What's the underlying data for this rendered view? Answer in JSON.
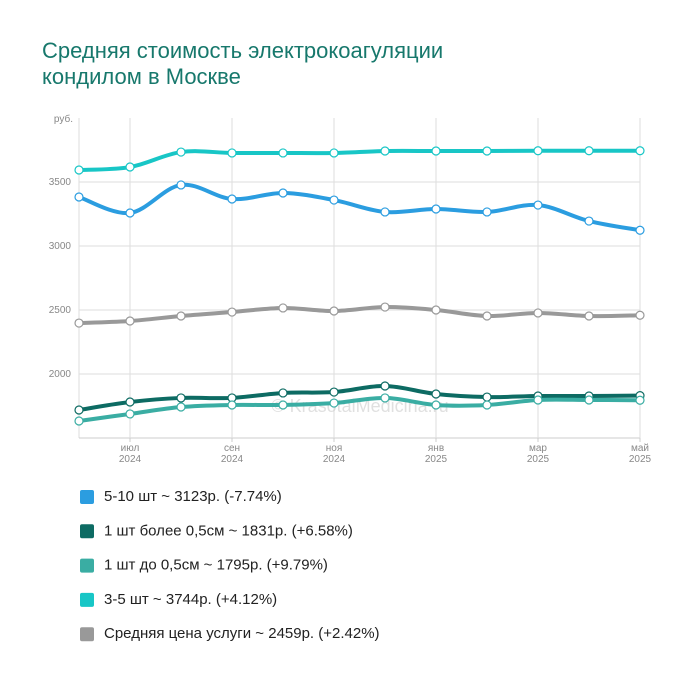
{
  "chart_data": {
    "type": "line",
    "title": "Средняя стоимость электрокоагуляции кондилом в Москве",
    "y_label": "руб.",
    "watermark": "© KrasotaiMedicina.ru",
    "categories": [
      null,
      "июл 2024",
      null,
      "сен 2024",
      null,
      "ноя 2024",
      null,
      "янв 2025",
      null,
      "мар 2025",
      null,
      "май 2025"
    ],
    "ylim": [
      1500,
      4000
    ],
    "yticks": [
      2000,
      2500,
      3000,
      3500
    ],
    "grid": true,
    "legend": "bottom",
    "series": [
      {
        "name": "5-10 шт ~ 3123р. (-7.74%)",
        "color": "#2b9de0",
        "values": [
          3383,
          3258,
          3477,
          3367,
          3414,
          3359,
          3266,
          3289,
          3266,
          3320,
          3195,
          3123
        ]
      },
      {
        "name": "1 шт более 0,5см ~ 1831р. (+6.58%)",
        "color": "#0d6b63",
        "values": [
          1719,
          1781,
          1813,
          1813,
          1852,
          1859,
          1906,
          1844,
          1820,
          1828,
          1828,
          1831
        ]
      },
      {
        "name": "1 шт до 0,5см ~ 1795р. (+9.79%)",
        "color": "#3aada3",
        "values": [
          1633,
          1688,
          1742,
          1758,
          1758,
          1773,
          1813,
          1758,
          1758,
          1797,
          1797,
          1795
        ]
      },
      {
        "name": "3-5 шт ~ 3744р. (+4.12%)",
        "color": "#18c6c6",
        "values": [
          3594,
          3617,
          3734,
          3727,
          3727,
          3727,
          3742,
          3742,
          3742,
          3744,
          3744,
          3744
        ]
      },
      {
        "name": "Средняя цена услуги ~ 2459р. (+2.42%)",
        "color": "#999999",
        "values": [
          2398,
          2414,
          2453,
          2484,
          2516,
          2492,
          2523,
          2500,
          2453,
          2477,
          2453,
          2459
        ]
      }
    ]
  }
}
